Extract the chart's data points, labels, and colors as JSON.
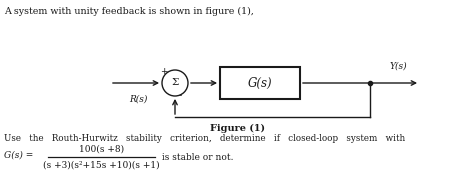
{
  "title_text": "A system with unity feedback is shown in figure (1),",
  "figure_label": "Figure (1)",
  "Rs_label": "R(s)",
  "Ys_label": "Y(s)",
  "Gs_label": "G(s)",
  "sigma_label": "Σ",
  "plus_label": "+",
  "minus_label": "-",
  "line1": "Use   the   Routh-Hurwitz   stability   criterion,   determine   if   closed-loop   system   with",
  "gs_prefix": "G(s) =",
  "numerator": "100(s +8)",
  "denominator": "(s +3)(s²+15s +10)(s +1)",
  "suffix": " is stable or not.",
  "bg_color": "#ffffff",
  "line_color": "#1a1a1a",
  "text_color": "#1a1a1a",
  "fig_width": 4.74,
  "fig_height": 1.91,
  "dpi": 100
}
